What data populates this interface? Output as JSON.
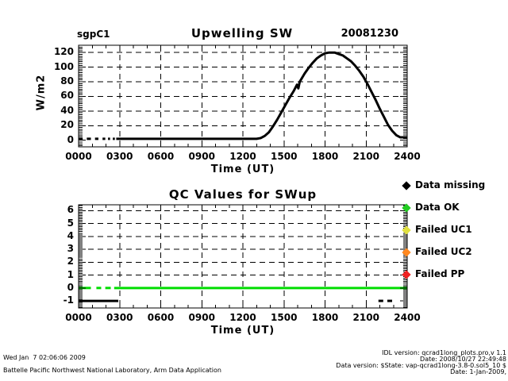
{
  "header": {
    "site": "sgpC1",
    "date": "20081230"
  },
  "chart_data": [
    {
      "type": "line",
      "title": "Upwelling SW",
      "xlabel": "Time (UT)",
      "ylabel": "W/m2",
      "xlim": [
        0,
        24
      ],
      "ylim": [
        -9,
        130
      ],
      "xtick_values": [
        0,
        3,
        6,
        9,
        12,
        15,
        18,
        21,
        24
      ],
      "xtick_labels": [
        "0000",
        "0300",
        "0600",
        "0900",
        "1200",
        "1500",
        "1800",
        "2100",
        "2400"
      ],
      "ytick_values": [
        0,
        20,
        40,
        60,
        80,
        100,
        120
      ],
      "ytick_labels": [
        "0",
        "20",
        "40",
        "60",
        "80",
        "100",
        "120"
      ],
      "grid_xticks": [
        3,
        6,
        9,
        12,
        15,
        18,
        21
      ],
      "grid_yticks": [
        20,
        40,
        60,
        80,
        100,
        120
      ],
      "grid": "dashed",
      "x_minor_step": 1,
      "y_minor_step": 2.5,
      "series": [
        {
          "name": "upwelling-sw",
          "color": "#000000",
          "width": 3,
          "segments": [
            [
              [
                0.0,
                2
              ],
              [
                0.3,
                2
              ]
            ],
            [
              [
                0.6,
                2
              ],
              [
                0.9,
                2
              ]
            ],
            [
              [
                1.2,
                2
              ],
              [
                1.45,
                2
              ]
            ],
            [
              [
                1.75,
                2
              ],
              [
                1.95,
                2
              ]
            ],
            [
              [
                2.15,
                2
              ],
              [
                2.3,
                2
              ]
            ],
            [
              [
                2.5,
                2
              ],
              [
                2.65,
                2
              ]
            ],
            [
              [
                2.75,
                2
              ],
              [
                5,
                2
              ],
              [
                8,
                2
              ],
              [
                11,
                2
              ],
              [
                12.5,
                2
              ],
              [
                13,
                2
              ],
              [
                13.3,
                3
              ],
              [
                13.6,
                6
              ],
              [
                13.9,
                11
              ],
              [
                14.2,
                19
              ],
              [
                14.5,
                28
              ],
              [
                14.8,
                38
              ],
              [
                15.1,
                48
              ],
              [
                15.4,
                58
              ],
              [
                15.7,
                67
              ],
              [
                15.95,
                76
              ],
              [
                16.05,
                71
              ],
              [
                16.15,
                80
              ],
              [
                16.5,
                91
              ],
              [
                16.8,
                99
              ],
              [
                17.1,
                106
              ],
              [
                17.4,
                112
              ],
              [
                17.7,
                116
              ],
              [
                18,
                119
              ],
              [
                18.3,
                120
              ],
              [
                18.7,
                120
              ],
              [
                19,
                118
              ],
              [
                19.3,
                116
              ],
              [
                19.6,
                112
              ],
              [
                19.9,
                108
              ],
              [
                20.2,
                102
              ],
              [
                20.5,
                95
              ],
              [
                20.8,
                87
              ],
              [
                21.1,
                77
              ],
              [
                21.4,
                66
              ],
              [
                21.7,
                55
              ],
              [
                22,
                43
              ],
              [
                22.3,
                32
              ],
              [
                22.6,
                21
              ],
              [
                22.9,
                13
              ],
              [
                23.2,
                7
              ],
              [
                23.5,
                4
              ],
              [
                24,
                4
              ]
            ]
          ]
        }
      ]
    },
    {
      "type": "line",
      "title": "QC Values for SWup",
      "xlabel": "Time (UT)",
      "ylabel": "",
      "xlim": [
        0,
        24
      ],
      "ylim": [
        -1.55,
        6.45
      ],
      "xtick_values": [
        0,
        3,
        6,
        9,
        12,
        15,
        18,
        21,
        24
      ],
      "xtick_labels": [
        "0000",
        "0300",
        "0600",
        "0900",
        "1200",
        "1500",
        "1800",
        "2100",
        "2400"
      ],
      "ytick_values": [
        -1,
        0,
        1,
        2,
        3,
        4,
        5,
        6
      ],
      "ytick_labels": [
        "-1",
        "0",
        "1",
        "2",
        "3",
        "4",
        "5",
        "6"
      ],
      "grid_xticks": [
        3,
        6,
        9,
        12,
        15,
        18,
        21
      ],
      "grid_yticks": [
        1,
        2,
        3,
        4,
        5,
        6
      ],
      "grid": "dashed",
      "x_minor_step": 1,
      "y_minor_step": 0.125,
      "series": [
        {
          "name": "qc-data-missing",
          "color": "#000000",
          "width": 3,
          "segments": [
            [
              [
                0,
                -1
              ],
              [
                2.9,
                -1
              ]
            ],
            [
              [
                21.9,
                -1
              ],
              [
                22.25,
                -1
              ]
            ],
            [
              [
                22.55,
                -1
              ],
              [
                22.9,
                -1
              ]
            ]
          ]
        },
        {
          "name": "qc-data-ok",
          "color": "#00dd00",
          "width": 3,
          "segments": [
            [
              [
                0,
                0
              ],
              [
                0.9,
                0
              ]
            ],
            [
              [
                1.3,
                0
              ],
              [
                1.65,
                0
              ]
            ],
            [
              [
                1.95,
                0
              ],
              [
                2.35,
                0
              ]
            ],
            [
              [
                2.6,
                0
              ],
              [
                24,
                0
              ]
            ]
          ]
        }
      ]
    }
  ],
  "legend": {
    "items": [
      {
        "label": "Data missing",
        "color": "#000000"
      },
      {
        "label": "Data OK",
        "color": "#22cc22"
      },
      {
        "label": "Failed UC1",
        "color": "#e0e040"
      },
      {
        "label": "Failed UC2",
        "color": "#ff8820"
      },
      {
        "label": "Failed PP",
        "color": "#ee2222"
      }
    ]
  },
  "footer": {
    "timestamp": "Wed Jan  7 02:06:06 2009",
    "organization": "Battelle Pacific Northwest National Laboratory, Arm Data Application",
    "idl_version": "IDL version: qcrad1long_plots.pro,v 1.1",
    "idl_date": "Date: 2008/10/27 22:49:48",
    "data_version": "Data version: $State: vap-qcrad1long-3.8-0.sol5_10 $",
    "data_date": "Date: 1-Jan-2009,"
  }
}
